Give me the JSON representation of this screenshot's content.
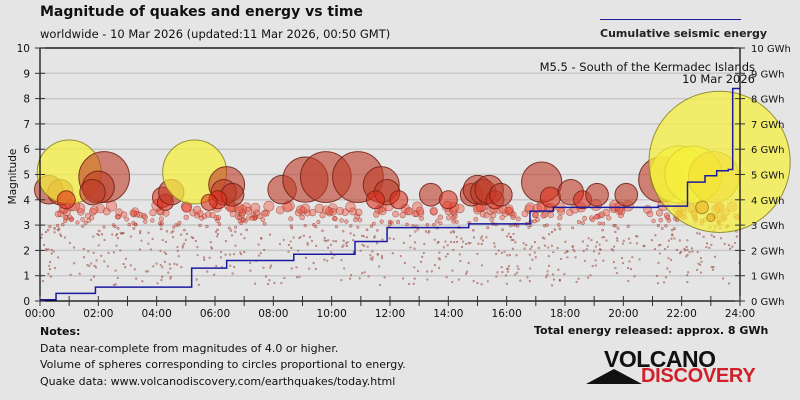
{
  "header": {
    "title": "Magnitude of quakes and energy vs time",
    "subtitle": "worldwide - 10 Mar 2026 (updated:11 Mar 2026, 00:50 GMT)"
  },
  "legend": {
    "series_label": "Cumulative seismic energy",
    "line_color": "#1a1aa0"
  },
  "annotation": {
    "line1": "M5.5 - South of the Kermadec Islands",
    "line2": "10 Mar 2026"
  },
  "notes": {
    "heading": "Notes:",
    "lines": [
      "Data near-complete from magnitudes of 4.0 or higher.",
      "Volume of spheres corresponding to circles proportional to energy.",
      "Quake data: www.volcanodiscovery.com/earthquakes/today.html"
    ]
  },
  "total_energy": "Total energy released: approx. 8 GWh",
  "logo": {
    "top": "VOLCANO",
    "bottom": "DISCOVERY",
    "bottom_color": "#d0202a"
  },
  "chart_data": {
    "type": "scatter",
    "title": "Magnitude of quakes and energy vs time",
    "xlabel": "",
    "ylabel": "Magnitude",
    "y2label": "Cumulative seismic energy",
    "xlim": [
      0,
      24
    ],
    "ylim": [
      0,
      10
    ],
    "y2lim": [
      0,
      10
    ],
    "x_ticks": [
      "00:00",
      "02:00",
      "04:00",
      "06:00",
      "08:00",
      "10:00",
      "12:00",
      "14:00",
      "16:00",
      "18:00",
      "20:00",
      "22:00",
      "24:00"
    ],
    "y_ticks": [
      "0",
      "1",
      "2",
      "3",
      "4",
      "5",
      "6",
      "7",
      "8",
      "9",
      "10"
    ],
    "y2_ticks": [
      "0 GWh",
      "1 GWh",
      "2 GWh",
      "3 GWh",
      "4 GWh",
      "5 GWh",
      "6 GWh",
      "7 GWh",
      "8 GWh",
      "9 GWh",
      "10 GWh"
    ],
    "grid": true,
    "legend_position": "top-right",
    "large_quakes": [
      {
        "t": 0.3,
        "m": 4.4
      },
      {
        "t": 0.7,
        "m": 4.3
      },
      {
        "t": 1.0,
        "m": 5.1
      },
      {
        "t": 0.9,
        "m": 4.0
      },
      {
        "t": 2.2,
        "m": 4.9
      },
      {
        "t": 2.0,
        "m": 4.5
      },
      {
        "t": 1.8,
        "m": 4.3
      },
      {
        "t": 4.2,
        "m": 4.1
      },
      {
        "t": 4.3,
        "m": 3.9
      },
      {
        "t": 4.5,
        "m": 4.3
      },
      {
        "t": 5.3,
        "m": 5.1
      },
      {
        "t": 6.4,
        "m": 4.6
      },
      {
        "t": 6.3,
        "m": 4.3
      },
      {
        "t": 6.6,
        "m": 4.2
      },
      {
        "t": 6.1,
        "m": 4.0
      },
      {
        "t": 5.8,
        "m": 3.9
      },
      {
        "t": 8.3,
        "m": 4.4
      },
      {
        "t": 9.1,
        "m": 4.8
      },
      {
        "t": 9.8,
        "m": 4.9
      },
      {
        "t": 10.9,
        "m": 4.9
      },
      {
        "t": 11.7,
        "m": 4.6
      },
      {
        "t": 11.9,
        "m": 4.3
      },
      {
        "t": 11.5,
        "m": 4.0
      },
      {
        "t": 12.3,
        "m": 4.0
      },
      {
        "t": 13.4,
        "m": 4.2
      },
      {
        "t": 14.0,
        "m": 4.0
      },
      {
        "t": 14.8,
        "m": 4.2
      },
      {
        "t": 15.0,
        "m": 4.4
      },
      {
        "t": 15.2,
        "m": 4.3
      },
      {
        "t": 15.4,
        "m": 4.4
      },
      {
        "t": 15.6,
        "m": 4.0
      },
      {
        "t": 15.8,
        "m": 4.2
      },
      {
        "t": 17.2,
        "m": 4.7
      },
      {
        "t": 17.5,
        "m": 4.1
      },
      {
        "t": 18.2,
        "m": 4.3
      },
      {
        "t": 18.6,
        "m": 4.0
      },
      {
        "t": 19.1,
        "m": 4.2
      },
      {
        "t": 20.1,
        "m": 4.2
      },
      {
        "t": 21.3,
        "m": 4.8
      },
      {
        "t": 21.9,
        "m": 5.0
      },
      {
        "t": 22.4,
        "m": 5.0
      },
      {
        "t": 23.1,
        "m": 4.9
      },
      {
        "t": 23.3,
        "m": 5.5
      },
      {
        "t": 22.7,
        "m": 3.7
      },
      {
        "t": 23.0,
        "m": 3.3
      }
    ],
    "energy_steps": [
      {
        "t": 0.0,
        "e": 0.05
      },
      {
        "t": 0.55,
        "e": 0.3
      },
      {
        "t": 1.9,
        "e": 0.55
      },
      {
        "t": 5.2,
        "e": 1.3
      },
      {
        "t": 6.4,
        "e": 1.6
      },
      {
        "t": 8.7,
        "e": 1.85
      },
      {
        "t": 10.8,
        "e": 2.35
      },
      {
        "t": 11.9,
        "e": 2.9
      },
      {
        "t": 14.7,
        "e": 3.05
      },
      {
        "t": 16.8,
        "e": 3.55
      },
      {
        "t": 17.6,
        "e": 3.7
      },
      {
        "t": 21.2,
        "e": 3.75
      },
      {
        "t": 21.6,
        "e": 3.75
      },
      {
        "t": 22.2,
        "e": 4.7
      },
      {
        "t": 22.8,
        "e": 4.95
      },
      {
        "t": 23.2,
        "e": 5.15
      },
      {
        "t": 23.6,
        "e": 5.2
      },
      {
        "t": 23.75,
        "e": 8.4
      },
      {
        "t": 24.0,
        "e": 8.4
      }
    ],
    "total_energy_gwh": 8
  }
}
